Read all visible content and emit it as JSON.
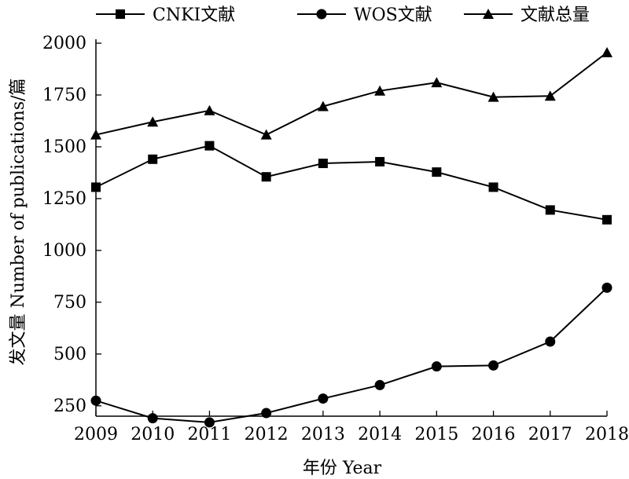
{
  "chart_data": {
    "type": "line",
    "categories": [
      "2009",
      "2010",
      "2011",
      "2012",
      "2013",
      "2014",
      "2015",
      "2016",
      "2017",
      "2018"
    ],
    "series": [
      {
        "name": "CNKI文献",
        "marker": "square",
        "values": [
          1305,
          1440,
          1505,
          1355,
          1420,
          1428,
          1378,
          1305,
          1195,
          1148
        ]
      },
      {
        "name": "WOS文献",
        "marker": "circle",
        "values": [
          275,
          190,
          170,
          215,
          285,
          350,
          440,
          445,
          560,
          820
        ]
      },
      {
        "name": "文献总量",
        "marker": "triangle",
        "values": [
          1558,
          1620,
          1675,
          1558,
          1695,
          1770,
          1810,
          1740,
          1745,
          1955
        ]
      }
    ],
    "xlabel": "年份 Year",
    "ylabel": "发文量 Number of publications/篇",
    "ylim": [
      200,
      2000
    ],
    "yticks": [
      250,
      500,
      750,
      1000,
      1250,
      1500,
      1750,
      2000
    ],
    "grid": false,
    "legend_position": "top",
    "line_color": "#000000"
  }
}
